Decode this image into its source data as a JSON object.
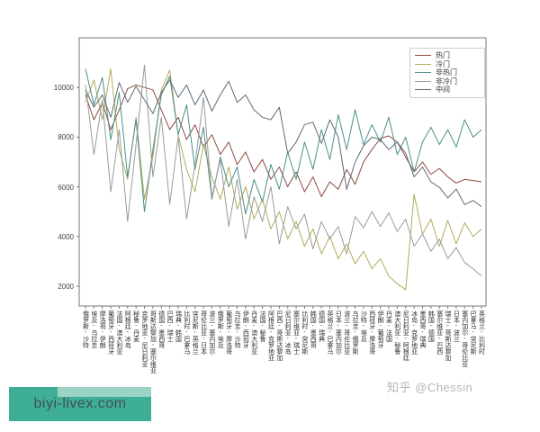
{
  "watermarks": {
    "zhihu": "知乎 @Chessin",
    "brand": "biyi-livex.com"
  },
  "colors": {
    "brand_box": "#3fae96",
    "brand_strip": "#9bd4c5",
    "brand_text": "#3f5054",
    "watermark_text": "#b5b5b5",
    "axis": "#777777",
    "tick_label": "#444444"
  },
  "chart_data": {
    "type": "line",
    "title": "",
    "xlabel": "",
    "ylabel": "",
    "grid": false,
    "legend_position": "upper right",
    "ylim": [
      1200,
      12000
    ],
    "yticks": [
      "2000",
      "4000",
      "6000",
      "8000",
      "10000"
    ],
    "ytick_values": [
      2000,
      4000,
      6000,
      8000,
      10000
    ],
    "x_tick_rotation": "vertical",
    "categories": [
      "俄罗斯-沙特",
      "埃及-乌拉圭",
      "摩洛哥-伊朗",
      "葡萄牙-西班牙",
      "法国-澳大利亚",
      "阿根廷-冰岛",
      "秘鲁-丹麦",
      "克罗地亚-尼日利亚",
      "哥斯达黎加-塞尔维亚",
      "德国-墨西哥",
      "巴西-瑞士",
      "瑞典-韩国",
      "比利时-巴拿马",
      "突尼斯-英格兰",
      "哥伦比亚-日本",
      "波兰-塞内加尔",
      "俄罗斯-埃及",
      "葡萄牙-摩洛哥",
      "乌拉圭-沙特",
      "伊朗-西班牙",
      "丹麦-澳大利亚",
      "法国-秘鲁",
      "阿根廷-克罗地亚",
      "巴西-哥斯达黎加",
      "尼日利亚-冰岛",
      "塞尔维亚-瑞士",
      "比利时-突尼斯",
      "韩国-墨西哥",
      "德国-瑞典",
      "英格兰-巴拿马",
      "日本-塞内加尔",
      "波兰-哥伦比亚",
      "乌拉圭-俄罗斯",
      "沙特-埃及",
      "西班牙-摩洛哥",
      "伊朗-葡萄牙",
      "丹麦-法国",
      "澳大利亚-秘鲁",
      "尼日利亚-阿根廷",
      "冰岛-克罗地亚",
      "墨西哥-瑞典",
      "韩国-德国",
      "塞尔维亚-巴西",
      "瑞士-哥斯达黎加",
      "日本-波兰",
      "塞内加尔-哥伦比亚",
      "巴拿马-突尼斯",
      "英格兰-比利时"
    ],
    "series": [
      {
        "name": "热门",
        "color": "#8e4a41",
        "values": [
          9700,
          8700,
          9400,
          8300,
          9100,
          9950,
          10100,
          10000,
          9900,
          9100,
          8300,
          8800,
          7900,
          8500,
          7600,
          8100,
          7300,
          7800,
          6900,
          7400,
          6600,
          7100,
          6300,
          6800,
          6000,
          6600,
          5800,
          6400,
          5600,
          6200,
          5900,
          6700,
          6100,
          7000,
          7500,
          7950,
          8050,
          7800,
          7200,
          6600,
          7000,
          6500,
          6740,
          6400,
          6150,
          6300,
          6250,
          6200
        ]
      },
      {
        "name": "冷门",
        "color": "#b3ab5c",
        "values": [
          9400,
          10300,
          8700,
          10750,
          7500,
          6300,
          8800,
          5500,
          7200,
          9900,
          10700,
          8100,
          6700,
          5800,
          7700,
          6400,
          5500,
          6800,
          5100,
          6000,
          4700,
          5500,
          4300,
          5000,
          3900,
          4600,
          3600,
          4300,
          3300,
          4000,
          3100,
          3700,
          2900,
          3400,
          2700,
          3100,
          2400,
          2100,
          1850,
          5700,
          4100,
          4700,
          3600,
          4650,
          3700,
          4550,
          4000,
          4300
        ]
      },
      {
        "name": "非热门",
        "color": "#4e8f8a",
        "values": [
          10750,
          9300,
          10400,
          7900,
          9800,
          6400,
          8700,
          5000,
          7500,
          9700,
          10450,
          8100,
          9300,
          6700,
          8400,
          5500,
          7200,
          6000,
          6800,
          4900,
          6300,
          5400,
          6900,
          5900,
          7400,
          6300,
          7800,
          6700,
          8300,
          7100,
          8900,
          7500,
          9100,
          7700,
          8500,
          7800,
          8800,
          7300,
          8000,
          6600,
          7800,
          8400,
          7700,
          8300,
          7600,
          8700,
          8000,
          8300
        ]
      },
      {
        "name": "非冷门",
        "color": "#9b9b9b",
        "values": [
          10100,
          7300,
          9500,
          5800,
          8300,
          4600,
          7700,
          10900,
          6400,
          8800,
          5300,
          8000,
          4700,
          6900,
          9600,
          5600,
          7100,
          4400,
          6300,
          3900,
          5600,
          4600,
          6000,
          3700,
          5200,
          4300,
          4900,
          3500,
          4600,
          3900,
          4400,
          3300,
          4800,
          4350,
          5000,
          4400,
          4950,
          4200,
          4700,
          3600,
          4100,
          3400,
          3900,
          3100,
          3550,
          2950,
          2700,
          2400
        ]
      },
      {
        "name": "中间",
        "color": "#5d6b76",
        "values": [
          9900,
          9200,
          9700,
          8800,
          10200,
          9400,
          10050,
          9500,
          8950,
          9800,
          10300,
          9600,
          10100,
          9300,
          9900,
          9050,
          9700,
          10250,
          9400,
          9700,
          9100,
          8800,
          8700,
          9200,
          7350,
          7800,
          8500,
          8600,
          7750,
          8700,
          8000,
          5900,
          7000,
          7650,
          8000,
          7900,
          7500,
          7800,
          7350,
          6400,
          6800,
          6200,
          5980,
          5550,
          5910,
          5280,
          5450,
          5200
        ]
      }
    ]
  }
}
